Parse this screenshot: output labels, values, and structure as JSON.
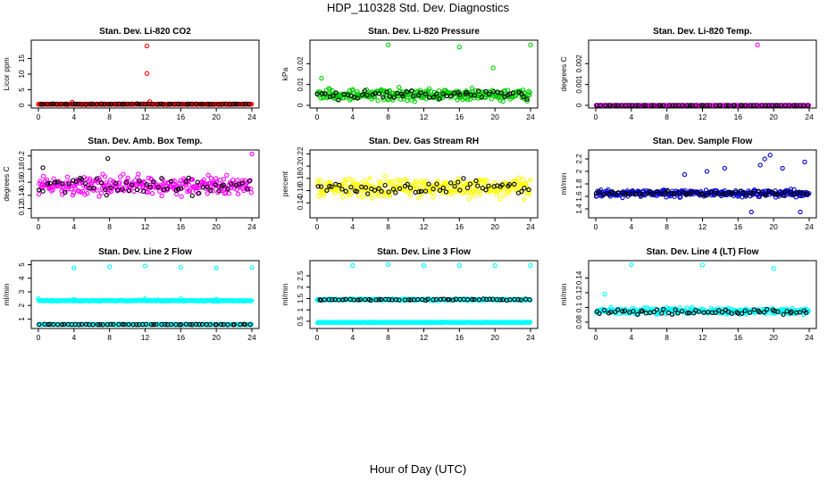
{
  "page": {
    "title": "HDP_110328  Std. Dev. Diagnostics",
    "xlabel": "Hour of Day (UTC)"
  },
  "chart_data": [
    {
      "type": "scatter",
      "title": "Stan. Dev. Li-820 CO2",
      "xlabel": "",
      "ylabel": "Licor ppm",
      "xlim": [
        0,
        24
      ],
      "ylim": [
        0,
        20
      ],
      "xticks": [
        0,
        4,
        8,
        12,
        16,
        20,
        24
      ],
      "yticks": [
        0,
        5,
        10,
        15
      ],
      "series": [
        {
          "name": "main",
          "color": "#ff0000",
          "base": 0.35,
          "spread": 0.15,
          "outliers": [
            [
              12.2,
              19.0
            ],
            [
              12.2,
              10.2
            ],
            [
              12.5,
              1.2
            ],
            [
              3.8,
              1.0
            ]
          ]
        },
        {
          "name": "hourly",
          "color": "#000000",
          "base": 0.4,
          "spread": 0.15,
          "outliers": []
        }
      ]
    },
    {
      "type": "scatter",
      "title": "Stan. Dev. Li-820 Pressure",
      "xlabel": "",
      "ylabel": "kPa",
      "xlim": [
        0,
        24
      ],
      "ylim": [
        0,
        0.03
      ],
      "xticks": [
        0,
        4,
        8,
        12,
        16,
        20,
        24
      ],
      "yticks": [
        0,
        0.01,
        0.02
      ],
      "series": [
        {
          "name": "main",
          "color": "#00cd00",
          "base": 0.005,
          "spread": 0.004,
          "outliers": [
            [
              0.5,
              0.013
            ],
            [
              8,
              0.029
            ],
            [
              16,
              0.028
            ],
            [
              24,
              0.029
            ],
            [
              19.8,
              0.018
            ]
          ]
        },
        {
          "name": "hourly",
          "color": "#000000",
          "base": 0.005,
          "spread": 0.003,
          "outliers": []
        }
      ]
    },
    {
      "type": "scatter",
      "title": "Stan. Dev. Li-820 Temp.",
      "xlabel": "",
      "ylabel": "degrees C",
      "xlim": [
        0,
        24
      ],
      "ylim": [
        0,
        0.003
      ],
      "xticks": [
        0,
        4,
        8,
        12,
        16,
        20,
        24
      ],
      "yticks": [
        0,
        0.001,
        0.002
      ],
      "series": [
        {
          "name": "main",
          "color": "#ff00ff",
          "base": 0,
          "spread": 0,
          "outliers": [
            [
              18.2,
              0.0029
            ]
          ]
        },
        {
          "name": "hourly",
          "color": "#000000",
          "base": 0,
          "spread": 0,
          "outliers": []
        }
      ]
    },
    {
      "type": "scatter",
      "title": "Stan. Dev. Amb. Box Temp.",
      "xlabel": "",
      "ylabel": "degrees C",
      "xlim": [
        0,
        24
      ],
      "ylim": [
        0.11,
        0.205
      ],
      "xticks": [
        0,
        4,
        8,
        12,
        16,
        20,
        24
      ],
      "yticks": [
        0.12,
        0.14,
        0.16,
        0.18,
        0.2
      ],
      "series": [
        {
          "name": "main",
          "color": "#ff00ff",
          "base": 0.155,
          "spread": 0.02,
          "outliers": [
            [
              24,
              0.203
            ]
          ]
        },
        {
          "name": "hourly",
          "color": "#000000",
          "base": 0.155,
          "spread": 0.018,
          "outliers": [
            [
              0.5,
              0.182
            ],
            [
              7.8,
              0.196
            ]
          ]
        }
      ]
    },
    {
      "type": "scatter",
      "title": "Stan. Dev. Gas Stream RH",
      "xlabel": "",
      "ylabel": "percent",
      "xlim": [
        0,
        24
      ],
      "ylim": [
        0.12,
        0.222
      ],
      "xticks": [
        0,
        4,
        8,
        12,
        16,
        20,
        24
      ],
      "yticks": [
        0.14,
        0.16,
        0.18,
        0.2,
        0.22
      ],
      "series": [
        {
          "name": "main",
          "color": "#ffff00",
          "base": 0.165,
          "spread": 0.022,
          "outliers": []
        },
        {
          "name": "hourly",
          "color": "#000000",
          "base": 0.165,
          "spread": 0.017,
          "outliers": []
        }
      ]
    },
    {
      "type": "scatter",
      "title": "Stan. Dev. Sample Flow",
      "xlabel": "",
      "ylabel": "ml/min",
      "xlim": [
        0,
        24
      ],
      "ylim": [
        1.3,
        2.3
      ],
      "xticks": [
        0,
        4,
        8,
        12,
        16,
        20,
        24
      ],
      "yticks": [
        1.4,
        1.6,
        1.8,
        2.0,
        2.2
      ],
      "series": [
        {
          "name": "main",
          "color": "#0000cd",
          "base": 1.65,
          "spread": 0.08,
          "outliers": [
            [
              19,
              2.2
            ],
            [
              19.6,
              2.26
            ],
            [
              18.5,
              2.1
            ],
            [
              23.5,
              2.15
            ],
            [
              21,
              2.05
            ],
            [
              17.5,
              1.35
            ],
            [
              23,
              1.35
            ],
            [
              12.5,
              2.0
            ],
            [
              10,
              1.95
            ],
            [
              14.5,
              2.05
            ]
          ]
        },
        {
          "name": "hourly",
          "color": "#000000",
          "base": 1.65,
          "spread": 0.05,
          "outliers": []
        }
      ]
    },
    {
      "type": "scatter",
      "title": "Stan. Dev. Line 2 Flow",
      "xlabel": "",
      "ylabel": "ml/min",
      "xlim": [
        0,
        24
      ],
      "ylim": [
        0.5,
        5.1
      ],
      "xticks": [
        0,
        4,
        8,
        12,
        16,
        20,
        24
      ],
      "yticks": [
        1,
        2,
        3,
        4,
        5
      ],
      "series": [
        {
          "name": "upper",
          "color": "#00ffff",
          "base": 2.35,
          "spread": 0.05,
          "outliers": [
            [
              4,
              4.75
            ],
            [
              8,
              4.85
            ],
            [
              12,
              4.9
            ],
            [
              16,
              4.8
            ],
            [
              20,
              4.75
            ],
            [
              24,
              4.8
            ],
            [
              0,
              2.5
            ],
            [
              4,
              2.45
            ],
            [
              12,
              2.5
            ],
            [
              16,
              2.5
            ],
            [
              20,
              2.45
            ]
          ]
        },
        {
          "name": "lower",
          "color": "#00ffff",
          "base": 0.6,
          "spread": 0.02,
          "outliers": []
        },
        {
          "name": "hourly",
          "color": "#000000",
          "base": 0.6,
          "spread": 0.02,
          "outliers": []
        }
      ]
    },
    {
      "type": "scatter",
      "title": "Stan. Dev. Line 3 Flow",
      "xlabel": "",
      "ylabel": "ml/min",
      "xlim": [
        0,
        24
      ],
      "ylim": [
        0.3,
        3.05
      ],
      "xticks": [
        0,
        4,
        8,
        12,
        16,
        20,
        24
      ],
      "yticks": [
        0.5,
        1.0,
        1.5,
        2.0,
        2.5
      ],
      "series": [
        {
          "name": "upper",
          "color": "#00ffff",
          "base": 1.45,
          "spread": 0.05,
          "outliers": [
            [
              4,
              2.95
            ],
            [
              8,
              3.0
            ],
            [
              12,
              2.95
            ],
            [
              16,
              2.95
            ],
            [
              20,
              2.95
            ],
            [
              24,
              2.95
            ]
          ]
        },
        {
          "name": "lower",
          "color": "#00ffff",
          "base": 0.45,
          "spread": 0.02,
          "outliers": []
        },
        {
          "name": "hourly",
          "color": "#000000",
          "base": 1.45,
          "spread": 0.04,
          "outliers": []
        }
      ]
    },
    {
      "type": "scatter",
      "title": "Stan. Dev. Line 4 (LT) Flow",
      "xlabel": "",
      "ylabel": "ml/min",
      "xlim": [
        0,
        24
      ],
      "ylim": [
        0.075,
        0.16
      ],
      "xticks": [
        0,
        4,
        8,
        12,
        16,
        20,
        24
      ],
      "yticks": [
        0.08,
        0.1,
        0.12,
        0.14
      ],
      "series": [
        {
          "name": "main",
          "color": "#00ffff",
          "base": 0.095,
          "spread": 0.006,
          "outliers": [
            [
              4,
              0.158
            ],
            [
              12,
              0.158
            ],
            [
              20,
              0.153
            ],
            [
              1,
              0.118
            ]
          ]
        },
        {
          "name": "hourly",
          "color": "#000000",
          "base": 0.094,
          "spread": 0.006,
          "outliers": []
        }
      ]
    }
  ]
}
